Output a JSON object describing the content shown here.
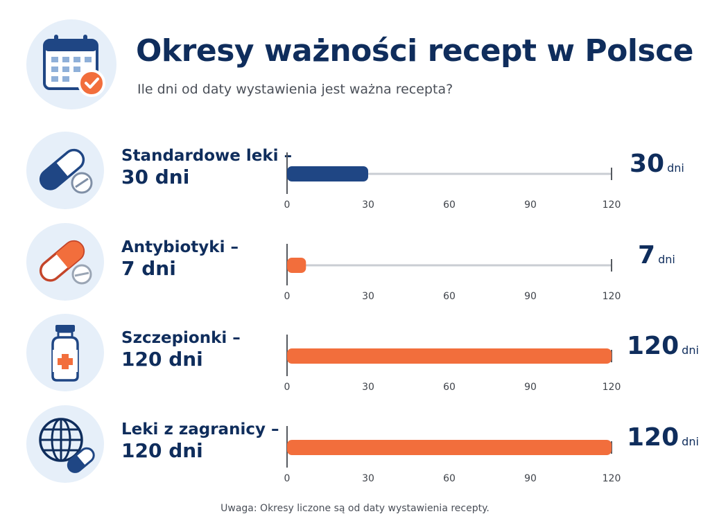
{
  "header": {
    "title": "Okresy ważności recept w Polsce",
    "subtitle": "Ile dni od daty wystawienia jest ważna recepta?",
    "icon": "calendar-check-icon"
  },
  "colors": {
    "navy": "#1f4684",
    "orange": "#f26e3c",
    "text": "#0f2d5c",
    "track": "#c9cdd3",
    "icon_bg": "#e6eff9"
  },
  "chart_data": {
    "type": "bar",
    "orientation": "horizontal",
    "title": "Okresy ważności recept w Polsce",
    "subtitle": "Ile dni od daty wystawienia jest ważna recepta?",
    "xlim": [
      0,
      120
    ],
    "ticks": [
      "0",
      "30",
      "60",
      "90",
      "120"
    ],
    "unit": "dni",
    "rows": [
      {
        "label_line1": "Standardowe leki –",
        "label_line2": "30 dni",
        "value": 30,
        "value_text": "30",
        "unit": "dni",
        "color": "#1f4684",
        "icon": "pill-capsule-icon"
      },
      {
        "label_line1": "Antybiotyki –",
        "label_line2": "7 dni",
        "value": 7,
        "value_text": "7",
        "unit": "dni",
        "color": "#f26e3c",
        "icon": "antibiotic-capsule-icon"
      },
      {
        "label_line1": "Szczepionki –",
        "label_line2": "120 dni",
        "value": 120,
        "value_text": "120",
        "unit": "dni",
        "color": "#f26e3c",
        "icon": "vaccine-vial-icon"
      },
      {
        "label_line1": "Leki z zagranicy –",
        "label_line2": "120 dni",
        "value": 120,
        "value_text": "120",
        "unit": "dni",
        "color": "#f26e3c",
        "icon": "globe-pill-icon"
      }
    ]
  },
  "note": "Uwaga: Okresy liczone są od daty wystawienia recepty."
}
